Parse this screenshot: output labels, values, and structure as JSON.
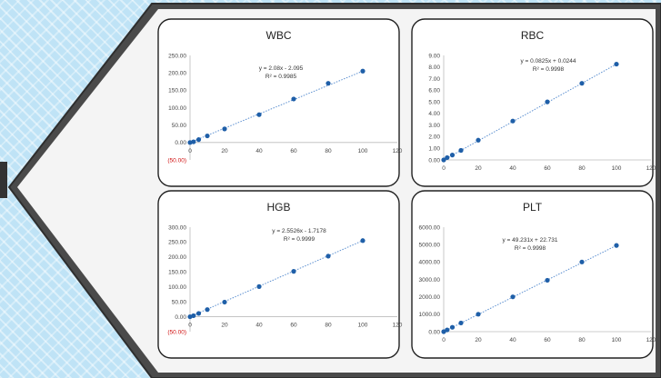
{
  "colors": {
    "background": "#bfe3f6",
    "frame_gray": "#4a4a4a",
    "marker": "#1f5fa8",
    "trendline": "#5b8fd0",
    "negative_tick": "#d01010"
  },
  "chart_data": [
    {
      "type": "scatter",
      "title": "WBC",
      "x": [
        0,
        2,
        5,
        10,
        20,
        40,
        60,
        80,
        100
      ],
      "values": [
        0.0,
        2.0,
        8.3,
        19.0,
        39.0,
        80.0,
        125.0,
        170.0,
        205.0
      ],
      "equation": "y = 2.08x - 2.095",
      "r2": "R² = 0.9985",
      "xlim": [
        0,
        120
      ],
      "ylim": [
        -50,
        250
      ],
      "x_ticks": [
        "0",
        "20",
        "40",
        "60",
        "80",
        "100",
        "120"
      ],
      "y_ticks": [
        "(50.00)",
        "0.00",
        "50.00",
        "100.00",
        "150.00",
        "200.00",
        "250.00"
      ],
      "trendline": "linear-dotted",
      "grid": false
    },
    {
      "type": "scatter",
      "title": "RBC",
      "x": [
        0,
        2,
        5,
        10,
        20,
        40,
        60,
        80,
        100
      ],
      "values": [
        0.0,
        0.2,
        0.42,
        0.82,
        1.7,
        3.35,
        5.0,
        6.6,
        8.25
      ],
      "equation": "y = 0.0825x + 0.0244",
      "r2": "R² = 0.9998",
      "xlim": [
        0,
        120
      ],
      "ylim": [
        0,
        9
      ],
      "x_ticks": [
        "0",
        "20",
        "40",
        "60",
        "80",
        "100",
        "120"
      ],
      "y_ticks": [
        "0.00",
        "1.00",
        "2.00",
        "3.00",
        "4.00",
        "5.00",
        "6.00",
        "7.00",
        "8.00",
        "9.00"
      ],
      "trendline": "linear-dotted",
      "grid": false
    },
    {
      "type": "scatter",
      "title": "HGB",
      "x": [
        0,
        2,
        5,
        10,
        20,
        40,
        60,
        80,
        100
      ],
      "values": [
        0.0,
        3.5,
        11.0,
        24.0,
        49.0,
        101.0,
        152.0,
        203.0,
        255.0
      ],
      "equation": "y = 2.5526x - 1.7178",
      "r2": "R² = 0.9999",
      "xlim": [
        0,
        120
      ],
      "ylim": [
        -50,
        300
      ],
      "x_ticks": [
        "0",
        "20",
        "40",
        "60",
        "80",
        "100",
        "120"
      ],
      "y_ticks": [
        "(50.00)",
        "0.00",
        "50.00",
        "100.00",
        "150.00",
        "200.00",
        "250.00",
        "300.00"
      ],
      "trendline": "linear-dotted",
      "grid": false
    },
    {
      "type": "scatter",
      "title": "PLT",
      "x": [
        0,
        2,
        5,
        10,
        20,
        40,
        60,
        80,
        100
      ],
      "values": [
        0,
        100,
        250,
        500,
        1000,
        2000,
        2950,
        4000,
        4950
      ],
      "equation": "y = 49.231x + 22.731",
      "r2": "R² = 0.9998",
      "xlim": [
        0,
        120
      ],
      "ylim": [
        0,
        6000
      ],
      "x_ticks": [
        "0",
        "20",
        "40",
        "60",
        "80",
        "100",
        "120"
      ],
      "y_ticks": [
        "0.00",
        "1000.00",
        "2000.00",
        "3000.00",
        "4000.00",
        "5000.00",
        "6000.00"
      ],
      "trendline": "linear-dotted",
      "grid": false
    }
  ]
}
